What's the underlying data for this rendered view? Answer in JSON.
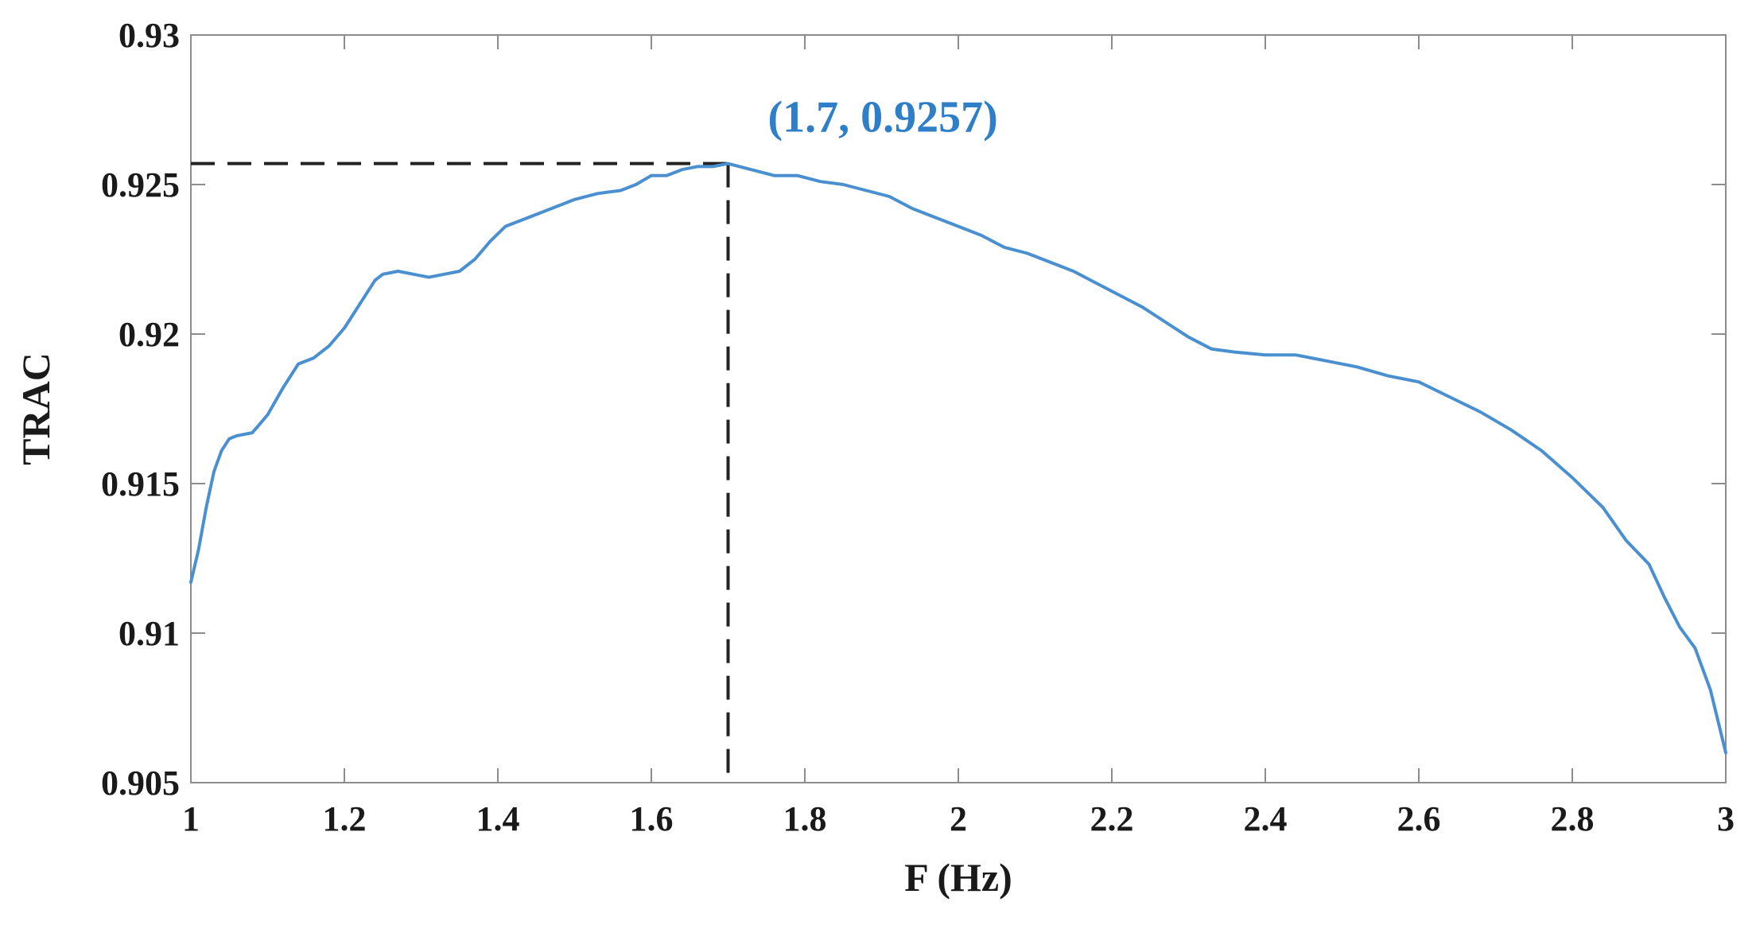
{
  "chart_data": {
    "type": "line",
    "title": "",
    "xlabel": "F (Hz)",
    "ylabel": "TRAC",
    "xlim": [
      1,
      3
    ],
    "ylim": [
      0.905,
      0.93
    ],
    "xticks": [
      1,
      1.2,
      1.4,
      1.6,
      1.8,
      2,
      2.2,
      2.4,
      2.6,
      2.8,
      3
    ],
    "xtick_labels": [
      "1",
      "1.2",
      "1.4",
      "1.6",
      "1.8",
      "2",
      "2.2",
      "2.4",
      "2.6",
      "2.8",
      "3"
    ],
    "yticks": [
      0.905,
      0.91,
      0.915,
      0.92,
      0.925,
      0.93
    ],
    "ytick_labels": [
      "0.905",
      "0.91",
      "0.915",
      "0.92",
      "0.925",
      "0.93"
    ],
    "grid": false,
    "legend": "none",
    "line_color": "#4a90d0",
    "annotation_color": "#2f7fc8",
    "guide_color": "#222222",
    "series": [
      {
        "x": [
          1.0,
          1.01,
          1.02,
          1.03,
          1.04,
          1.05,
          1.06,
          1.08,
          1.09,
          1.1,
          1.12,
          1.14,
          1.16,
          1.18,
          1.2,
          1.22,
          1.24,
          1.25,
          1.27,
          1.29,
          1.31,
          1.33,
          1.35,
          1.37,
          1.39,
          1.41,
          1.43,
          1.45,
          1.47,
          1.5,
          1.53,
          1.56,
          1.58,
          1.6,
          1.62,
          1.64,
          1.66,
          1.68,
          1.7,
          1.73,
          1.76,
          1.79,
          1.82,
          1.85,
          1.88,
          1.91,
          1.94,
          1.97,
          2.0,
          2.03,
          2.06,
          2.09,
          2.12,
          2.15,
          2.18,
          2.21,
          2.24,
          2.27,
          2.3,
          2.33,
          2.36,
          2.4,
          2.44,
          2.48,
          2.52,
          2.56,
          2.6,
          2.64,
          2.68,
          2.72,
          2.76,
          2.8,
          2.84,
          2.87,
          2.9,
          2.92,
          2.94,
          2.96,
          2.98,
          3.0
        ],
        "y": [
          0.9117,
          0.9128,
          0.9142,
          0.9154,
          0.9161,
          0.9165,
          0.9166,
          0.9167,
          0.917,
          0.9173,
          0.9182,
          0.919,
          0.9192,
          0.9196,
          0.9202,
          0.921,
          0.9218,
          0.922,
          0.9221,
          0.922,
          0.9219,
          0.922,
          0.9221,
          0.9225,
          0.9231,
          0.9236,
          0.9238,
          0.924,
          0.9242,
          0.9245,
          0.9247,
          0.9248,
          0.925,
          0.9253,
          0.9253,
          0.9255,
          0.9256,
          0.9256,
          0.9257,
          0.9255,
          0.9253,
          0.9253,
          0.9251,
          0.925,
          0.9248,
          0.9246,
          0.9242,
          0.9239,
          0.9236,
          0.9233,
          0.9229,
          0.9227,
          0.9224,
          0.9221,
          0.9217,
          0.9213,
          0.9209,
          0.9204,
          0.9199,
          0.9195,
          0.9194,
          0.9193,
          0.9193,
          0.9191,
          0.9189,
          0.9186,
          0.9184,
          0.9179,
          0.9174,
          0.9168,
          0.9161,
          0.9152,
          0.9142,
          0.9131,
          0.9123,
          0.9112,
          0.9102,
          0.9095,
          0.9081,
          0.906
        ]
      }
    ],
    "annotations": [
      {
        "text": "(1.7, 0.9257)",
        "x": 1.7,
        "y": 0.9257
      }
    ]
  }
}
